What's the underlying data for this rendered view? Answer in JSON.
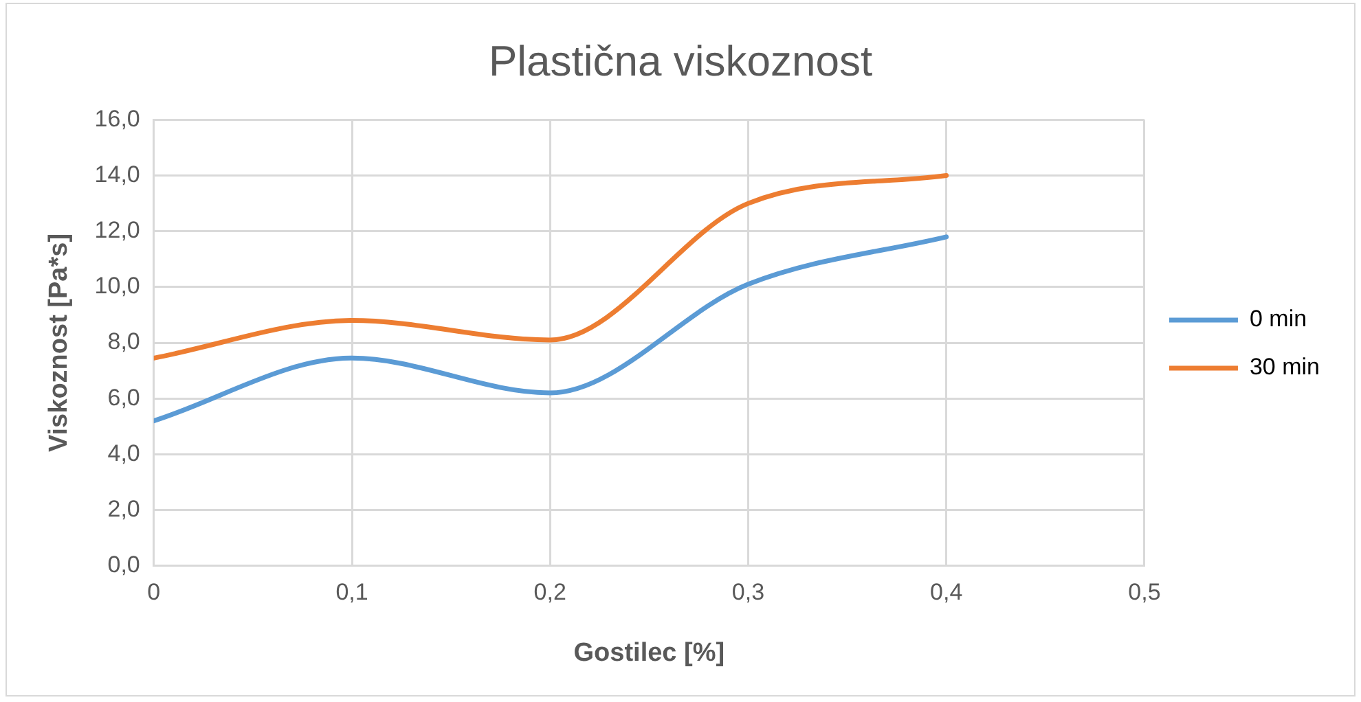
{
  "chart_data": {
    "type": "line",
    "title": "Plastična viskoznost",
    "xlabel": "Gostilec [%]",
    "ylabel": "Viskoznost [Pa*s]",
    "x": [
      0,
      0.1,
      0.2,
      0.3,
      0.4
    ],
    "series": [
      {
        "name": "0 min",
        "color": "#5b9bd5",
        "values": [
          5.2,
          7.45,
          6.2,
          10.1,
          11.8
        ]
      },
      {
        "name": "30 min",
        "color": "#ed7d31",
        "values": [
          7.45,
          8.8,
          8.1,
          13.0,
          14.0
        ]
      }
    ],
    "xlim": [
      0,
      0.5
    ],
    "xticks": [
      0,
      {
        "value": 0.1,
        "label": "0,1"
      },
      {
        "value": 0.2,
        "label": "0,2"
      },
      {
        "value": 0.3,
        "label": "0,3"
      },
      {
        "value": 0.4,
        "label": "0,4"
      },
      {
        "value": 0.5,
        "label": "0,5"
      }
    ],
    "ylim": [
      0,
      16
    ],
    "yticks": [
      {
        "value": 0,
        "label": "0,0"
      },
      {
        "value": 2,
        "label": "2,0"
      },
      {
        "value": 4,
        "label": "4,0"
      },
      {
        "value": 6,
        "label": "6,0"
      },
      {
        "value": 8,
        "label": "8,0"
      },
      {
        "value": 10,
        "label": "10,0"
      },
      {
        "value": 12,
        "label": "12,0"
      },
      {
        "value": 14,
        "label": "14,0"
      },
      {
        "value": 16,
        "label": "16,0"
      }
    ],
    "grid": true,
    "legend": "right",
    "marker": "none",
    "line_style": "solid"
  }
}
